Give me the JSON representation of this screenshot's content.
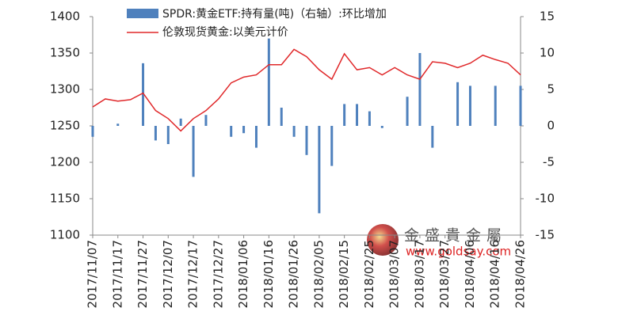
{
  "chart_data": {
    "type": "bar-line",
    "legend": {
      "bar": "SPDR:黄金ETF:持有量(吨)（右轴）:环比增加",
      "line": "伦敦现货黄金:以美元计价"
    },
    "categories": [
      "2017/11/07",
      null,
      "2017/11/17",
      null,
      "2017/11/27",
      null,
      "2017/12/07",
      null,
      "2017/12/17",
      null,
      "2017/12/27",
      null,
      "2018/01/06",
      null,
      "2018/01/16",
      null,
      "2018/01/26",
      null,
      "2018/02/05",
      null,
      "2018/02/15",
      null,
      "2018/02/25",
      null,
      "2018/03/07",
      null,
      "2018/03/17",
      null,
      "2018/03/27",
      null,
      "2018/04/06",
      null,
      "2018/04/16",
      null,
      "2018/04/26"
    ],
    "series": [
      {
        "name": "SPDR:黄金ETF:持有量(吨)（右轴）:环比增加",
        "kind": "bar",
        "axis": "y2",
        "color": "#4f81bd",
        "values": [
          -1.5,
          0,
          0.3,
          0,
          8.6,
          -2,
          -2.5,
          1,
          -7,
          1.5,
          0,
          -1.5,
          -1,
          -3,
          12,
          2.5,
          -1.5,
          -4,
          -12,
          -5.5,
          3,
          3,
          2,
          -0.3,
          0,
          4,
          10,
          -3,
          0,
          6,
          5.5,
          0,
          5.5,
          0,
          5.5
        ]
      },
      {
        "name": "伦敦现货黄金:以美元计价",
        "kind": "line",
        "axis": "y",
        "color": "#e0282a",
        "values": [
          1276,
          1287,
          1284,
          1286,
          1295,
          1271,
          1260,
          1243,
          1260,
          1271,
          1287,
          1309,
          1317,
          1320,
          1334,
          1334,
          1355,
          1345,
          1327,
          1314,
          1349,
          1327,
          1330,
          1320,
          1330,
          1320,
          1314,
          1338,
          1336,
          1330,
          1336,
          1347,
          1341,
          1336,
          1320
        ]
      }
    ],
    "ylim": [
      1100,
      1400
    ],
    "yticks": [
      1100,
      1150,
      1200,
      1250,
      1300,
      1350,
      1400
    ],
    "y2lim": [
      -15,
      15
    ],
    "y2ticks": [
      -15,
      -10,
      -5,
      0,
      5,
      10,
      15
    ],
    "watermark": {
      "name": "金盛貴金屬",
      "url": "www.goldsay.com"
    }
  }
}
